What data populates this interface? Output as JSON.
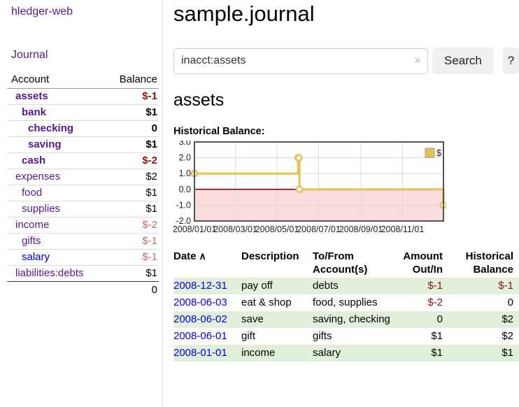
{
  "app": {
    "title": "hledger-web"
  },
  "sidebar": {
    "journal_link": "Journal",
    "header": {
      "account": "Account",
      "balance": "Balance"
    },
    "accounts": [
      {
        "name": "assets",
        "balance": "$-1",
        "indent": 0,
        "bold": true,
        "neg": "strong"
      },
      {
        "name": "bank",
        "balance": "$1",
        "indent": 1,
        "bold": true,
        "neg": "none"
      },
      {
        "name": "checking",
        "balance": "0",
        "indent": 2,
        "bold": true,
        "neg": "none"
      },
      {
        "name": "saving",
        "balance": "$1",
        "indent": 2,
        "bold": true,
        "neg": "none"
      },
      {
        "name": "cash",
        "balance": "$-2",
        "indent": 1,
        "bold": true,
        "neg": "strong"
      },
      {
        "name": "expenses",
        "balance": "$2",
        "indent": 0,
        "bold": false,
        "neg": "none"
      },
      {
        "name": "food",
        "balance": "$1",
        "indent": 1,
        "bold": false,
        "neg": "none"
      },
      {
        "name": "supplies",
        "balance": "$1",
        "indent": 1,
        "bold": false,
        "neg": "none"
      },
      {
        "name": "income",
        "balance": "$-2",
        "indent": 0,
        "bold": false,
        "neg": "soft"
      },
      {
        "name": "gifts",
        "balance": "$-1",
        "indent": 1,
        "bold": false,
        "neg": "soft"
      },
      {
        "name": "salary",
        "balance": "$-1",
        "indent": 1,
        "bold": false,
        "neg": "soft",
        "link_color": "blue"
      },
      {
        "name": "liabilities:debts",
        "balance": "$1",
        "indent": 0,
        "bold": false,
        "neg": "none"
      }
    ],
    "total": "0"
  },
  "header": {
    "title": "sample.journal"
  },
  "search": {
    "value": "inacct:assets",
    "clear_icon": "×",
    "button": "Search",
    "help_button": "?"
  },
  "account_page": {
    "title": "assets",
    "chart_label": "Historical Balance:"
  },
  "chart_data": {
    "type": "line",
    "title": "Historical Balance:",
    "series": [
      {
        "name": "$",
        "step": true,
        "points": [
          [
            "2008-01-01",
            1
          ],
          [
            "2008-06-01",
            2
          ],
          [
            "2008-06-02",
            2
          ],
          [
            "2008-06-03",
            0
          ],
          [
            "2008-12-31",
            -1
          ]
        ]
      }
    ],
    "x_ticks": [
      "2008/01/01",
      "2008/03/01",
      "2008/05/01",
      "2008/07/01",
      "2008/09/01",
      "2008/11/01"
    ],
    "y_ticks": [
      "3.0",
      "2.0",
      "1.0",
      "0.0",
      "-1.0",
      "-2.0"
    ],
    "xlim": [
      "2008-01-01",
      "2008-12-31"
    ],
    "ylim": [
      -2,
      3
    ],
    "grid": true,
    "legend": {
      "label": "$",
      "position": "top-right"
    },
    "colors": {
      "line": "#e7c14f",
      "marker_fill": "#ffffff",
      "negative_region": "#fbdcdc",
      "zero_line": "#8b0000",
      "grid": "#d9d9d9",
      "border": "#545454",
      "text": "#222222"
    }
  },
  "register": {
    "columns": [
      {
        "label": "Date",
        "label2": "",
        "align": "left",
        "sort_icon": "∧"
      },
      {
        "label": "Description",
        "label2": "",
        "align": "left"
      },
      {
        "label": "To/From",
        "label2": "Account(s)",
        "align": "left"
      },
      {
        "label": "Amount",
        "label2": "Out/In",
        "align": "right"
      },
      {
        "label": "Historical",
        "label2": "Balance",
        "align": "right"
      }
    ],
    "rows": [
      {
        "date": "2008-12-31",
        "description": "pay off",
        "accounts": "debts",
        "amount": "$-1",
        "balance": "$-1"
      },
      {
        "date": "2008-06-03",
        "description": "eat & shop",
        "accounts": "food, supplies",
        "amount": "$-2",
        "balance": "0"
      },
      {
        "date": "2008-06-02",
        "description": "save",
        "accounts": "saving, checking",
        "amount": "0",
        "balance": "$2"
      },
      {
        "date": "2008-06-01",
        "description": "gift",
        "accounts": "gifts",
        "amount": "$1",
        "balance": "$2"
      },
      {
        "date": "2008-01-01",
        "description": "income",
        "accounts": "salary",
        "amount": "$1",
        "balance": "$1"
      }
    ]
  }
}
